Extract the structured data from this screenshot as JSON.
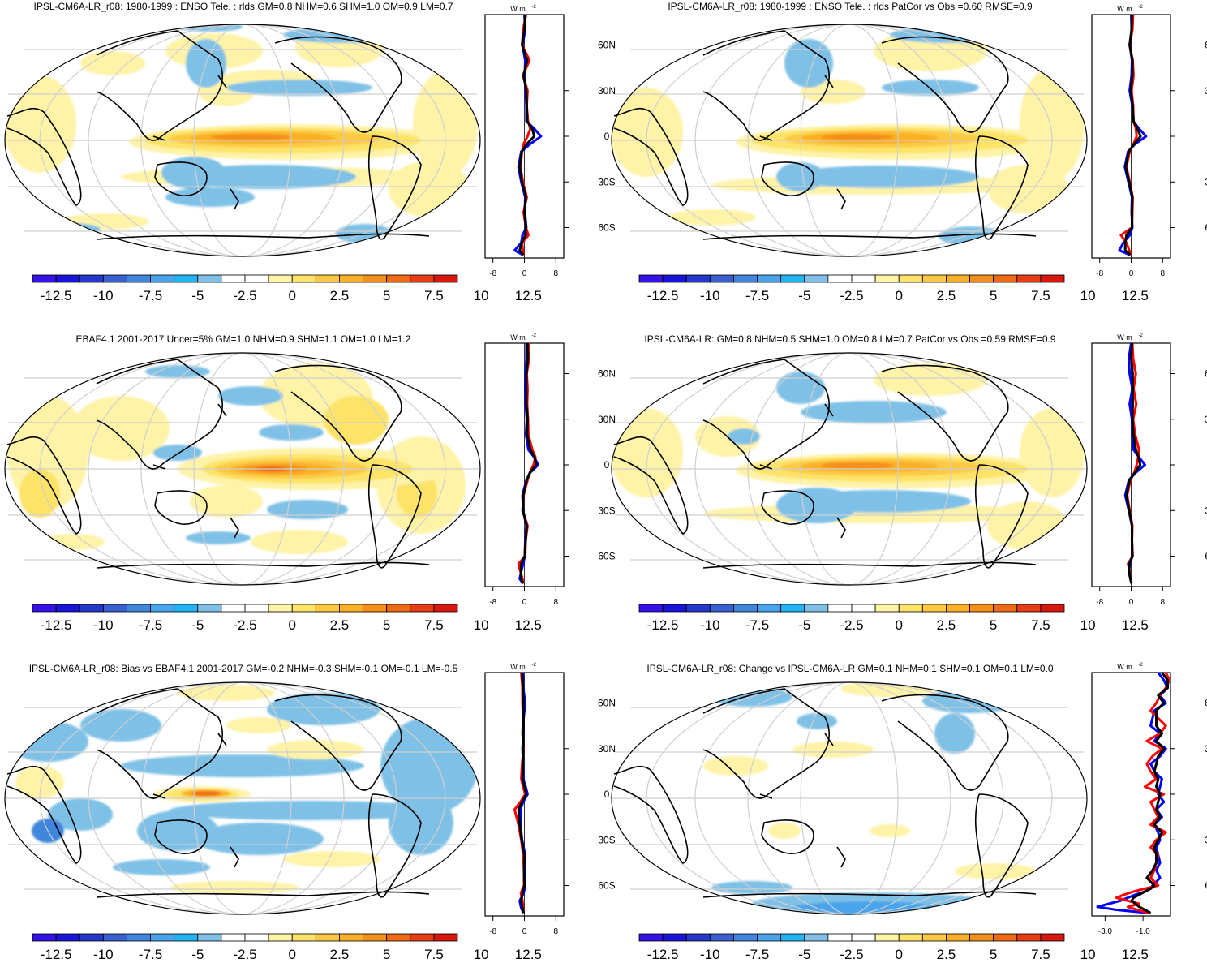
{
  "colorbar": {
    "colors": [
      "#3512e6",
      "#1a14d8",
      "#2438cc",
      "#3a5fcf",
      "#3f86dc",
      "#4aa4ec",
      "#22b4f2",
      "#7fc1e6",
      "#ffffff",
      "#ffffff",
      "#fff3a8",
      "#fde367",
      "#fdc944",
      "#fcb028",
      "#f58f1c",
      "#ee6a14",
      "#e63d12",
      "#d7180f"
    ],
    "labels": [
      "-12.5",
      "-10",
      "-7.5",
      "-5",
      "-2.5",
      "0",
      "2.5",
      "5",
      "7.5",
      "10",
      "12.5"
    ]
  },
  "lat_labels": [
    "60N",
    "30N",
    "0",
    "30S",
    "60S"
  ],
  "unit": "W m",
  "unit_sup": "-2",
  "series_colors": {
    "model": "#0000ff",
    "obs": "#ff0000",
    "mean": "#000000"
  },
  "chart_data": [
    {
      "type": "heatmap",
      "title": "IPSL-CM6A-LR_r08: 1980-1999 : ENSO Tele. : rlds GM=0.8 NHM=0.6 SHM=1.0 OM=0.9 LM=0.7",
      "zonal_profile": {
        "x_ticks": [
          "-8",
          "0",
          "8"
        ],
        "xlim": [
          -10,
          10
        ],
        "ylim": [
          -80,
          85
        ],
        "lat": [
          80,
          70,
          60,
          50,
          40,
          30,
          20,
          10,
          5,
          0,
          -5,
          -10,
          -20,
          -30,
          -40,
          -50,
          -60,
          -65,
          -70,
          -75,
          -78
        ],
        "series": [
          {
            "color": "model",
            "values": [
              0,
              0.2,
              -0.5,
              0.2,
              0.1,
              0.3,
              0.5,
              0.5,
              2.5,
              4.2,
              1.5,
              -0.8,
              -1.5,
              -0.8,
              0.2,
              0.1,
              0.5,
              -0.5,
              -0.8,
              -2.5,
              -0.3
            ]
          },
          {
            "color": "obs",
            "values": [
              0.4,
              -0.3,
              -0.6,
              1.3,
              -0.4,
              0.8,
              0.6,
              0.9,
              1.5,
              0.8,
              -0.2,
              -0.6,
              -1.0,
              -0.4,
              0.6,
              -0.2,
              0.4,
              1.0,
              -0.6,
              -0.4,
              -0.2
            ]
          },
          {
            "color": "mean",
            "values": [
              0.2,
              0,
              -0.6,
              0.7,
              -0.2,
              0.5,
              0.6,
              0.7,
              2.0,
              2.5,
              0.6,
              -0.7,
              -1.2,
              -0.6,
              0.4,
              0,
              0.4,
              0.3,
              -0.7,
              -1.2,
              -0.2
            ]
          }
        ]
      }
    },
    {
      "type": "heatmap",
      "title": "IPSL-CM6A-LR_r08: 1980-1999 : ENSO Tele. : rlds PatCor vs Obs =0.60 RMSE=0.9",
      "zonal_profile": {
        "x_ticks": [
          "-8",
          "0",
          "8"
        ],
        "xlim": [
          -10,
          10
        ],
        "ylim": [
          -80,
          85
        ],
        "lat": [
          80,
          70,
          60,
          50,
          40,
          30,
          20,
          10,
          5,
          0,
          -5,
          -10,
          -20,
          -30,
          -40,
          -50,
          -60,
          -65,
          -70,
          -75,
          -78
        ],
        "series": [
          {
            "color": "model",
            "values": [
              0,
              0.1,
              -0.3,
              0.2,
              0.1,
              -0.4,
              0.3,
              0.5,
              2.0,
              3.8,
              1.0,
              -0.8,
              -1.6,
              -0.7,
              0.2,
              0.1,
              0.3,
              -0.4,
              -2.0,
              -3.0,
              -0.3
            ]
          },
          {
            "color": "obs",
            "values": [
              0.5,
              0.3,
              -0.4,
              0.4,
              0.6,
              0.1,
              0.5,
              0.6,
              1.2,
              1.4,
              0.6,
              -0.4,
              -1.2,
              -0.4,
              0.4,
              0.3,
              0.2,
              -2.6,
              -1.2,
              -0.5,
              -0.2
            ]
          },
          {
            "color": "mean",
            "values": [
              0.2,
              0.1,
              -0.4,
              0.3,
              0.3,
              -0.1,
              0.4,
              0.6,
              1.6,
              2.4,
              0.8,
              -0.6,
              -1.4,
              -0.5,
              0.3,
              0.2,
              0.2,
              -1.2,
              -1.5,
              -1.5,
              -0.2
            ]
          }
        ]
      }
    },
    {
      "type": "heatmap",
      "title": "EBAF4.1 2001-2017 Uncer=5% GM=1.0 NHM=0.9 SHM=1.1 OM=1.0 LM=1.2",
      "zonal_profile": {
        "x_ticks": [
          "-8",
          "0",
          "8"
        ],
        "xlim": [
          -10,
          10
        ],
        "ylim": [
          -80,
          85
        ],
        "lat": [
          80,
          70,
          60,
          50,
          40,
          30,
          20,
          10,
          5,
          0,
          -5,
          -10,
          -20,
          -30,
          -40,
          -50,
          -60,
          -65,
          -70,
          -75,
          -78
        ],
        "series": [
          {
            "color": "model",
            "values": [
              0.5,
              0.5,
              0.3,
              0.2,
              0.3,
              0.6,
              0.4,
              1.0,
              2.5,
              3.5,
              1.5,
              0.5,
              -0.5,
              -0.3,
              0.5,
              0.2,
              0.1,
              -0.3,
              -0.8,
              -1.2,
              -0.3
            ]
          },
          {
            "color": "obs",
            "values": [
              1.0,
              1.2,
              0.6,
              0.8,
              0.7,
              0.9,
              1.0,
              2.0,
              2.8,
              2.3,
              1.4,
              0.8,
              -0.2,
              -0.5,
              0.8,
              0.3,
              0.2,
              -1.5,
              -1.0,
              -0.5,
              -0.3
            ]
          },
          {
            "color": "mean",
            "values": [
              0.8,
              0.9,
              0.5,
              0.5,
              0.5,
              0.8,
              0.7,
              1.5,
              2.6,
              3.0,
              1.4,
              0.6,
              -0.3,
              -0.4,
              0.6,
              0.3,
              0.1,
              -0.8,
              -0.9,
              -0.8,
              -0.3
            ]
          }
        ]
      }
    },
    {
      "type": "heatmap",
      "title": "IPSL-CM6A-LR: GM=0.8 NHM=0.5 SHM=1.0 OM=0.8 LM=0.7 PatCor vs Obs =0.59 RMSE=0.9",
      "zonal_profile": {
        "x_ticks": [
          "-8",
          "0",
          "8"
        ],
        "xlim": [
          -10,
          10
        ],
        "ylim": [
          -80,
          85
        ],
        "lat": [
          80,
          70,
          60,
          50,
          40,
          30,
          20,
          10,
          5,
          0,
          -5,
          -10,
          -20,
          -30,
          -40,
          -50,
          -60,
          -65,
          -70,
          -75,
          -78
        ],
        "series": [
          {
            "color": "model",
            "values": [
              0,
              -0.6,
              -0.4,
              0.3,
              -0.4,
              0.2,
              0.3,
              0.6,
              2.0,
              3.5,
              1.2,
              -0.6,
              -1.5,
              -0.6,
              0.2,
              0.2,
              0.3,
              -0.3,
              -0.6,
              -0.2,
              0.1
            ]
          },
          {
            "color": "obs",
            "values": [
              0.3,
              0.5,
              1.2,
              0.6,
              1.3,
              0.5,
              1.0,
              2.0,
              1.8,
              1.4,
              0.8,
              -0.2,
              -1.0,
              -0.4,
              0.3,
              0.2,
              0.4,
              -0.8,
              -0.4,
              -0.2,
              0.1
            ]
          },
          {
            "color": "mean",
            "values": [
              0.2,
              0,
              0.4,
              0.4,
              0.4,
              0.3,
              0.6,
              1.2,
              1.9,
              2.3,
              1.0,
              -0.4,
              -1.2,
              -0.5,
              0.2,
              0.2,
              0.3,
              -0.5,
              -0.5,
              -0.2,
              0.1
            ]
          }
        ]
      }
    },
    {
      "type": "heatmap",
      "title": "IPSL-CM6A-LR_r08: Bias vs EBAF4.1 2001-2017 GM=-0.2 NHM=-0.3 SHM=-0.1 OM=-0.1 LM=-0.5",
      "zonal_profile": {
        "x_ticks": [
          "-8",
          "0",
          "8"
        ],
        "xlim": [
          -10,
          10
        ],
        "ylim": [
          -80,
          85
        ],
        "lat": [
          80,
          70,
          60,
          50,
          40,
          30,
          20,
          10,
          5,
          0,
          -5,
          -10,
          -20,
          -30,
          -40,
          -50,
          -60,
          -65,
          -70,
          -75,
          -78
        ],
        "series": [
          {
            "color": "model",
            "values": [
              -0.4,
              -0.3,
              0.2,
              -0.2,
              -0.2,
              -0.5,
              -0.3,
              -0.3,
              0.3,
              0.8,
              -0.3,
              -1.0,
              -1.0,
              -0.6,
              0.2,
              0,
              0.2,
              -0.2,
              -1.2,
              -0.8,
              -0.2
            ]
          },
          {
            "color": "obs",
            "values": [
              -0.8,
              -0.5,
              -0.5,
              -0.3,
              -0.5,
              -0.2,
              -0.6,
              -0.8,
              -0.3,
              0.2,
              -1.0,
              -2.5,
              -1.5,
              -0.8,
              -0.3,
              -0.1,
              -0.1,
              -0.9,
              -0.5,
              -0.3,
              -0.2
            ]
          },
          {
            "color": "mean",
            "values": [
              -0.6,
              -0.4,
              -0.2,
              -0.2,
              -0.3,
              -0.3,
              -0.4,
              -0.5,
              0,
              0.5,
              -0.6,
              -1.5,
              -1.2,
              -0.7,
              0,
              -0.1,
              0,
              -0.5,
              -0.8,
              -0.5,
              -0.2
            ]
          }
        ]
      }
    },
    {
      "type": "heatmap",
      "title": "IPSL-CM6A-LR_r08: Change vs IPSL-CM6A-LR GM=0.1 NHM=0.1 SHM=0.1 OM=0.1 LM=0.0",
      "zonal_profile": {
        "x_ticks": [
          "-3.0",
          "-1.0"
        ],
        "xlim": [
          -3.7,
          0.45
        ],
        "ylim": [
          -80,
          85
        ],
        "lat": [
          80,
          75,
          70,
          65,
          60,
          55,
          50,
          45,
          40,
          35,
          30,
          25,
          20,
          15,
          10,
          5,
          0,
          -5,
          -10,
          -15,
          -20,
          -25,
          -30,
          -35,
          -40,
          -45,
          -50,
          -55,
          -60,
          -62,
          -64,
          -66,
          -68,
          -70,
          -72,
          -74,
          -76,
          -78
        ],
        "series": [
          {
            "color": "model",
            "values": [
              -0.2,
              0.1,
              0.3,
              -0.1,
              0.2,
              -0.4,
              -0.5,
              -0.6,
              -0.1,
              -0.4,
              0.2,
              -0.1,
              -0.6,
              -0.4,
              0,
              -0.1,
              -0.2,
              0.1,
              -0.3,
              0,
              -0.4,
              -0.2,
              -0.1,
              -0.3,
              -0.2,
              -0.1,
              -0.3,
              -0.1,
              -0.5,
              -0.6,
              -0.9,
              -1.4,
              -1.8,
              -2.2,
              -2.8,
              -3.4,
              -2.4,
              -0.7
            ]
          },
          {
            "color": "obs",
            "values": [
              0.2,
              0.4,
              0.2,
              -0.1,
              -0.3,
              -0.6,
              -0.2,
              0.2,
              -0.1,
              -0.8,
              0,
              -0.5,
              -0.8,
              -0.6,
              -0.3,
              -0.9,
              0.1,
              -0.6,
              -0.4,
              -0.2,
              -0.6,
              0.2,
              -0.3,
              -0.6,
              -0.2,
              -0.3,
              -0.4,
              -0.6,
              -0.2,
              -0.9,
              -1.5,
              -2.0,
              -2.4,
              -1.8,
              -1.2,
              -1.8,
              -1.3,
              -0.7
            ]
          },
          {
            "color": "mean",
            "values": [
              0,
              0.3,
              0.3,
              -0.2,
              0.1,
              -0.3,
              -0.3,
              -0.3,
              0,
              -0.3,
              0.1,
              -0.2,
              -0.3,
              -0.4,
              -0.2,
              -0.3,
              -0.1,
              -0.2,
              -0.3,
              -0.1,
              -0.4,
              0,
              -0.2,
              -0.4,
              -0.3,
              -0.3,
              -0.5,
              -0.8,
              -0.4,
              -0.6,
              -0.9,
              -1.2,
              -1.5,
              -1.6,
              -1.4,
              -1.2,
              -0.9,
              -0.6
            ]
          }
        ]
      }
    }
  ]
}
